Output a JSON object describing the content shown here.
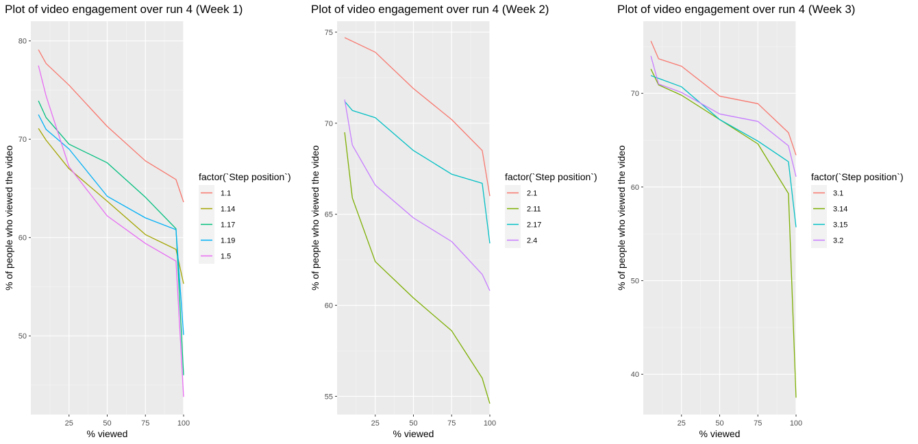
{
  "chart_data": [
    {
      "type": "line",
      "title": "Plot of video engagement over run 4 (Week 1)",
      "xlabel": "% viewed",
      "ylabel": "% of people who viewed the video",
      "xlim": [
        0,
        100
      ],
      "ylim": [
        42,
        82
      ],
      "x_ticks": [
        25,
        50,
        75,
        100
      ],
      "y_ticks": [
        50,
        60,
        70,
        80
      ],
      "legend_title": "factor(`Step position`)",
      "legend_position": "right",
      "grid": true,
      "x": [
        5,
        10,
        25,
        50,
        75,
        95,
        100
      ],
      "series": [
        {
          "name": "1.1",
          "color": "#F8766D",
          "values": [
            79.1,
            77.7,
            75.5,
            71.3,
            67.8,
            65.9,
            63.6
          ]
        },
        {
          "name": "1.14",
          "color": "#A3A500",
          "values": [
            71.1,
            69.9,
            67.0,
            63.7,
            60.3,
            58.8,
            55.3
          ]
        },
        {
          "name": "1.17",
          "color": "#00BF7D",
          "values": [
            73.9,
            72.2,
            69.5,
            67.6,
            64.1,
            60.9,
            46.0
          ]
        },
        {
          "name": "1.19",
          "color": "#00B0F6",
          "values": [
            72.5,
            71.0,
            69.0,
            64.2,
            62.0,
            60.8,
            50.1
          ]
        },
        {
          "name": "1.5",
          "color": "#E76BF3",
          "values": [
            77.5,
            74.4,
            67.2,
            62.2,
            59.4,
            57.6,
            43.8
          ]
        }
      ]
    },
    {
      "type": "line",
      "title": "Plot of video engagement over run 4 (Week 2)",
      "xlabel": "% viewed",
      "ylabel": "% of people who viewed the video",
      "xlim": [
        0,
        100
      ],
      "ylim": [
        54.0,
        75.6
      ],
      "x_ticks": [
        25,
        50,
        75,
        100
      ],
      "y_ticks": [
        55,
        60,
        65,
        70,
        75
      ],
      "legend_title": "factor(`Step position`)",
      "legend_position": "right",
      "grid": true,
      "x": [
        5,
        10,
        25,
        50,
        75,
        95,
        100
      ],
      "series": [
        {
          "name": "2.1",
          "color": "#F8766D",
          "values": [
            74.7,
            74.5,
            73.9,
            71.9,
            70.2,
            68.5,
            66.0
          ]
        },
        {
          "name": "2.11",
          "color": "#7CAE00",
          "values": [
            69.5,
            65.9,
            62.4,
            60.4,
            58.6,
            56.0,
            54.6
          ]
        },
        {
          "name": "2.17",
          "color": "#00BFC4",
          "values": [
            71.2,
            70.7,
            70.3,
            68.5,
            67.2,
            66.7,
            63.4
          ]
        },
        {
          "name": "2.4",
          "color": "#C77CFF",
          "values": [
            71.3,
            68.8,
            66.6,
            64.8,
            63.5,
            61.7,
            60.8
          ]
        }
      ]
    },
    {
      "type": "line",
      "title": "Plot of video engagement over run 4 (Week 3)",
      "xlabel": "% viewed",
      "ylabel": "% of people who viewed the video",
      "xlim": [
        0,
        100
      ],
      "ylim": [
        35.7,
        77.7
      ],
      "x_ticks": [
        25,
        50,
        75,
        100
      ],
      "y_ticks": [
        40,
        50,
        60,
        70
      ],
      "legend_title": "factor(`Step position`)",
      "legend_position": "right",
      "grid": true,
      "x": [
        5,
        10,
        25,
        50,
        75,
        95,
        100
      ],
      "series": [
        {
          "name": "3.1",
          "color": "#F8766D",
          "values": [
            75.6,
            73.7,
            72.9,
            69.7,
            68.9,
            65.8,
            63.4
          ]
        },
        {
          "name": "3.14",
          "color": "#7CAE00",
          "values": [
            72.6,
            70.9,
            69.8,
            67.2,
            64.6,
            59.3,
            37.5
          ]
        },
        {
          "name": "3.15",
          "color": "#00BFC4",
          "values": [
            71.9,
            71.6,
            70.7,
            67.2,
            64.9,
            62.7,
            55.7
          ]
        },
        {
          "name": "3.2",
          "color": "#C77CFF",
          "values": [
            74.0,
            71.0,
            70.1,
            67.8,
            67.0,
            64.4,
            61.1
          ]
        }
      ]
    }
  ]
}
